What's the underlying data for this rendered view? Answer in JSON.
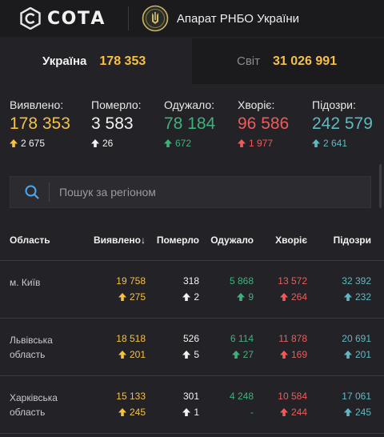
{
  "header": {
    "logo_text": "СОТА",
    "rnbo_title": "Апарат РНБО України"
  },
  "tabs": [
    {
      "name": "Україна",
      "value": "178 353"
    },
    {
      "name": "Світ",
      "value": "31 026 991"
    }
  ],
  "colors": {
    "confirmed": "#f6c042",
    "deaths": "#f2f2f2",
    "recovered": "#3fb07c",
    "sick": "#ef5a5a",
    "suspected": "#5fb9c1"
  },
  "stats": [
    {
      "label": "Виявлено:",
      "value": "178 353",
      "delta": "2 675",
      "arrow": "up"
    },
    {
      "label": "Померло:",
      "value": "3 583",
      "delta": "26",
      "arrow": "up"
    },
    {
      "label": "Одужало:",
      "value": "78 184",
      "delta": "672",
      "arrow": "up"
    },
    {
      "label": "Хворіє:",
      "value": "96 586",
      "delta": "1 977",
      "arrow": "up"
    },
    {
      "label": "Підозри:",
      "value": "242 579",
      "delta": "2 641",
      "arrow": "up"
    }
  ],
  "search": {
    "placeholder": "Пошук за регіоном",
    "icon": "search-icon"
  },
  "table": {
    "headers": {
      "region": "Область",
      "confirmed": "Виявлено",
      "sort_indicator": "↓",
      "deaths": "Померло",
      "recovered": "Одужало",
      "sick": "Хворіє",
      "suspected": "Підозри"
    },
    "rows": [
      {
        "region": "м. Київ",
        "confirmed": "19 758",
        "confirmed_delta": "275",
        "deaths": "318",
        "deaths_delta": "2",
        "recovered": "5 868",
        "recovered_delta": "9",
        "sick": "13 572",
        "sick_delta": "264",
        "suspected": "32 392",
        "suspected_delta": "232"
      },
      {
        "region": "Львівська область",
        "confirmed": "18 518",
        "confirmed_delta": "201",
        "deaths": "526",
        "deaths_delta": "5",
        "recovered": "6 114",
        "recovered_delta": "27",
        "sick": "11 878",
        "sick_delta": "169",
        "suspected": "20 691",
        "suspected_delta": "201"
      },
      {
        "region": "Харківська область",
        "confirmed": "15 133",
        "confirmed_delta": "245",
        "deaths": "301",
        "deaths_delta": "1",
        "recovered": "4 248",
        "recovered_delta": "-",
        "sick": "10 584",
        "sick_delta": "244",
        "suspected": "17 061",
        "suspected_delta": "245"
      }
    ]
  }
}
